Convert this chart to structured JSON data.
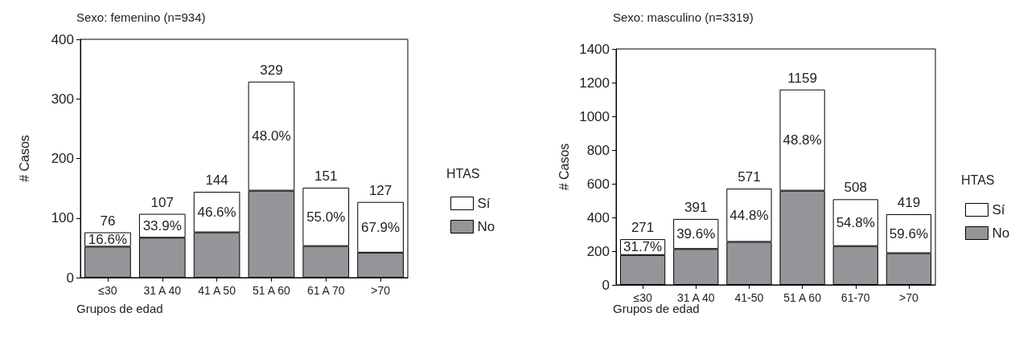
{
  "chart_data": [
    {
      "type": "bar",
      "title": "Sexo: femenino (n=934)",
      "xlabel": "Grupos de edad",
      "ylabel": "# Casos",
      "legend_title": "HTAS",
      "legend": "right",
      "grid": false,
      "stacked": true,
      "categories": [
        "≤30",
        "31 A 40",
        "41 A 50",
        "51 A 60",
        "61 A 70",
        ">70"
      ],
      "ylim": [
        0,
        400
      ],
      "yticks": [
        0,
        100,
        200,
        300,
        400
      ],
      "series": [
        {
          "name": "No",
          "color": "#939598",
          "values": [
            52,
            67,
            76,
            146,
            53,
            42
          ]
        },
        {
          "name": "Sí",
          "color": "#ffffff",
          "values": [
            24,
            40,
            68,
            183,
            98,
            85
          ]
        }
      ],
      "annotations": [
        "16.6%",
        "33.9%",
        "46.6%",
        "48.0%",
        "55.0%",
        "67.9%"
      ],
      "totals": [
        "76",
        "107",
        "144",
        "329",
        "151",
        "127"
      ]
    },
    {
      "type": "bar",
      "title": "Sexo: masculino (n=3319)",
      "xlabel": "Grupos de edad",
      "ylabel": "# Casos",
      "legend_title": "HTAS",
      "legend": "right",
      "grid": false,
      "stacked": true,
      "categories": [
        "≤30",
        "31 A 40",
        "41-50",
        "51 A 60",
        "61-70",
        ">70"
      ],
      "ylim": [
        0,
        1400
      ],
      "yticks": [
        0,
        200,
        400,
        600,
        800,
        1000,
        1200,
        1400
      ],
      "series": [
        {
          "name": "No",
          "color": "#939598",
          "values": [
            177,
            213,
            255,
            559,
            230,
            188
          ]
        },
        {
          "name": "Sí",
          "color": "#ffffff",
          "values": [
            94,
            178,
            316,
            600,
            278,
            231
          ]
        }
      ],
      "annotations": [
        "31.7%",
        "39.6%",
        "44.8%",
        "48.8%",
        "54.8%",
        "59.6%"
      ],
      "totals": [
        "271",
        "391",
        "571",
        "1159",
        "508",
        "419"
      ]
    }
  ]
}
